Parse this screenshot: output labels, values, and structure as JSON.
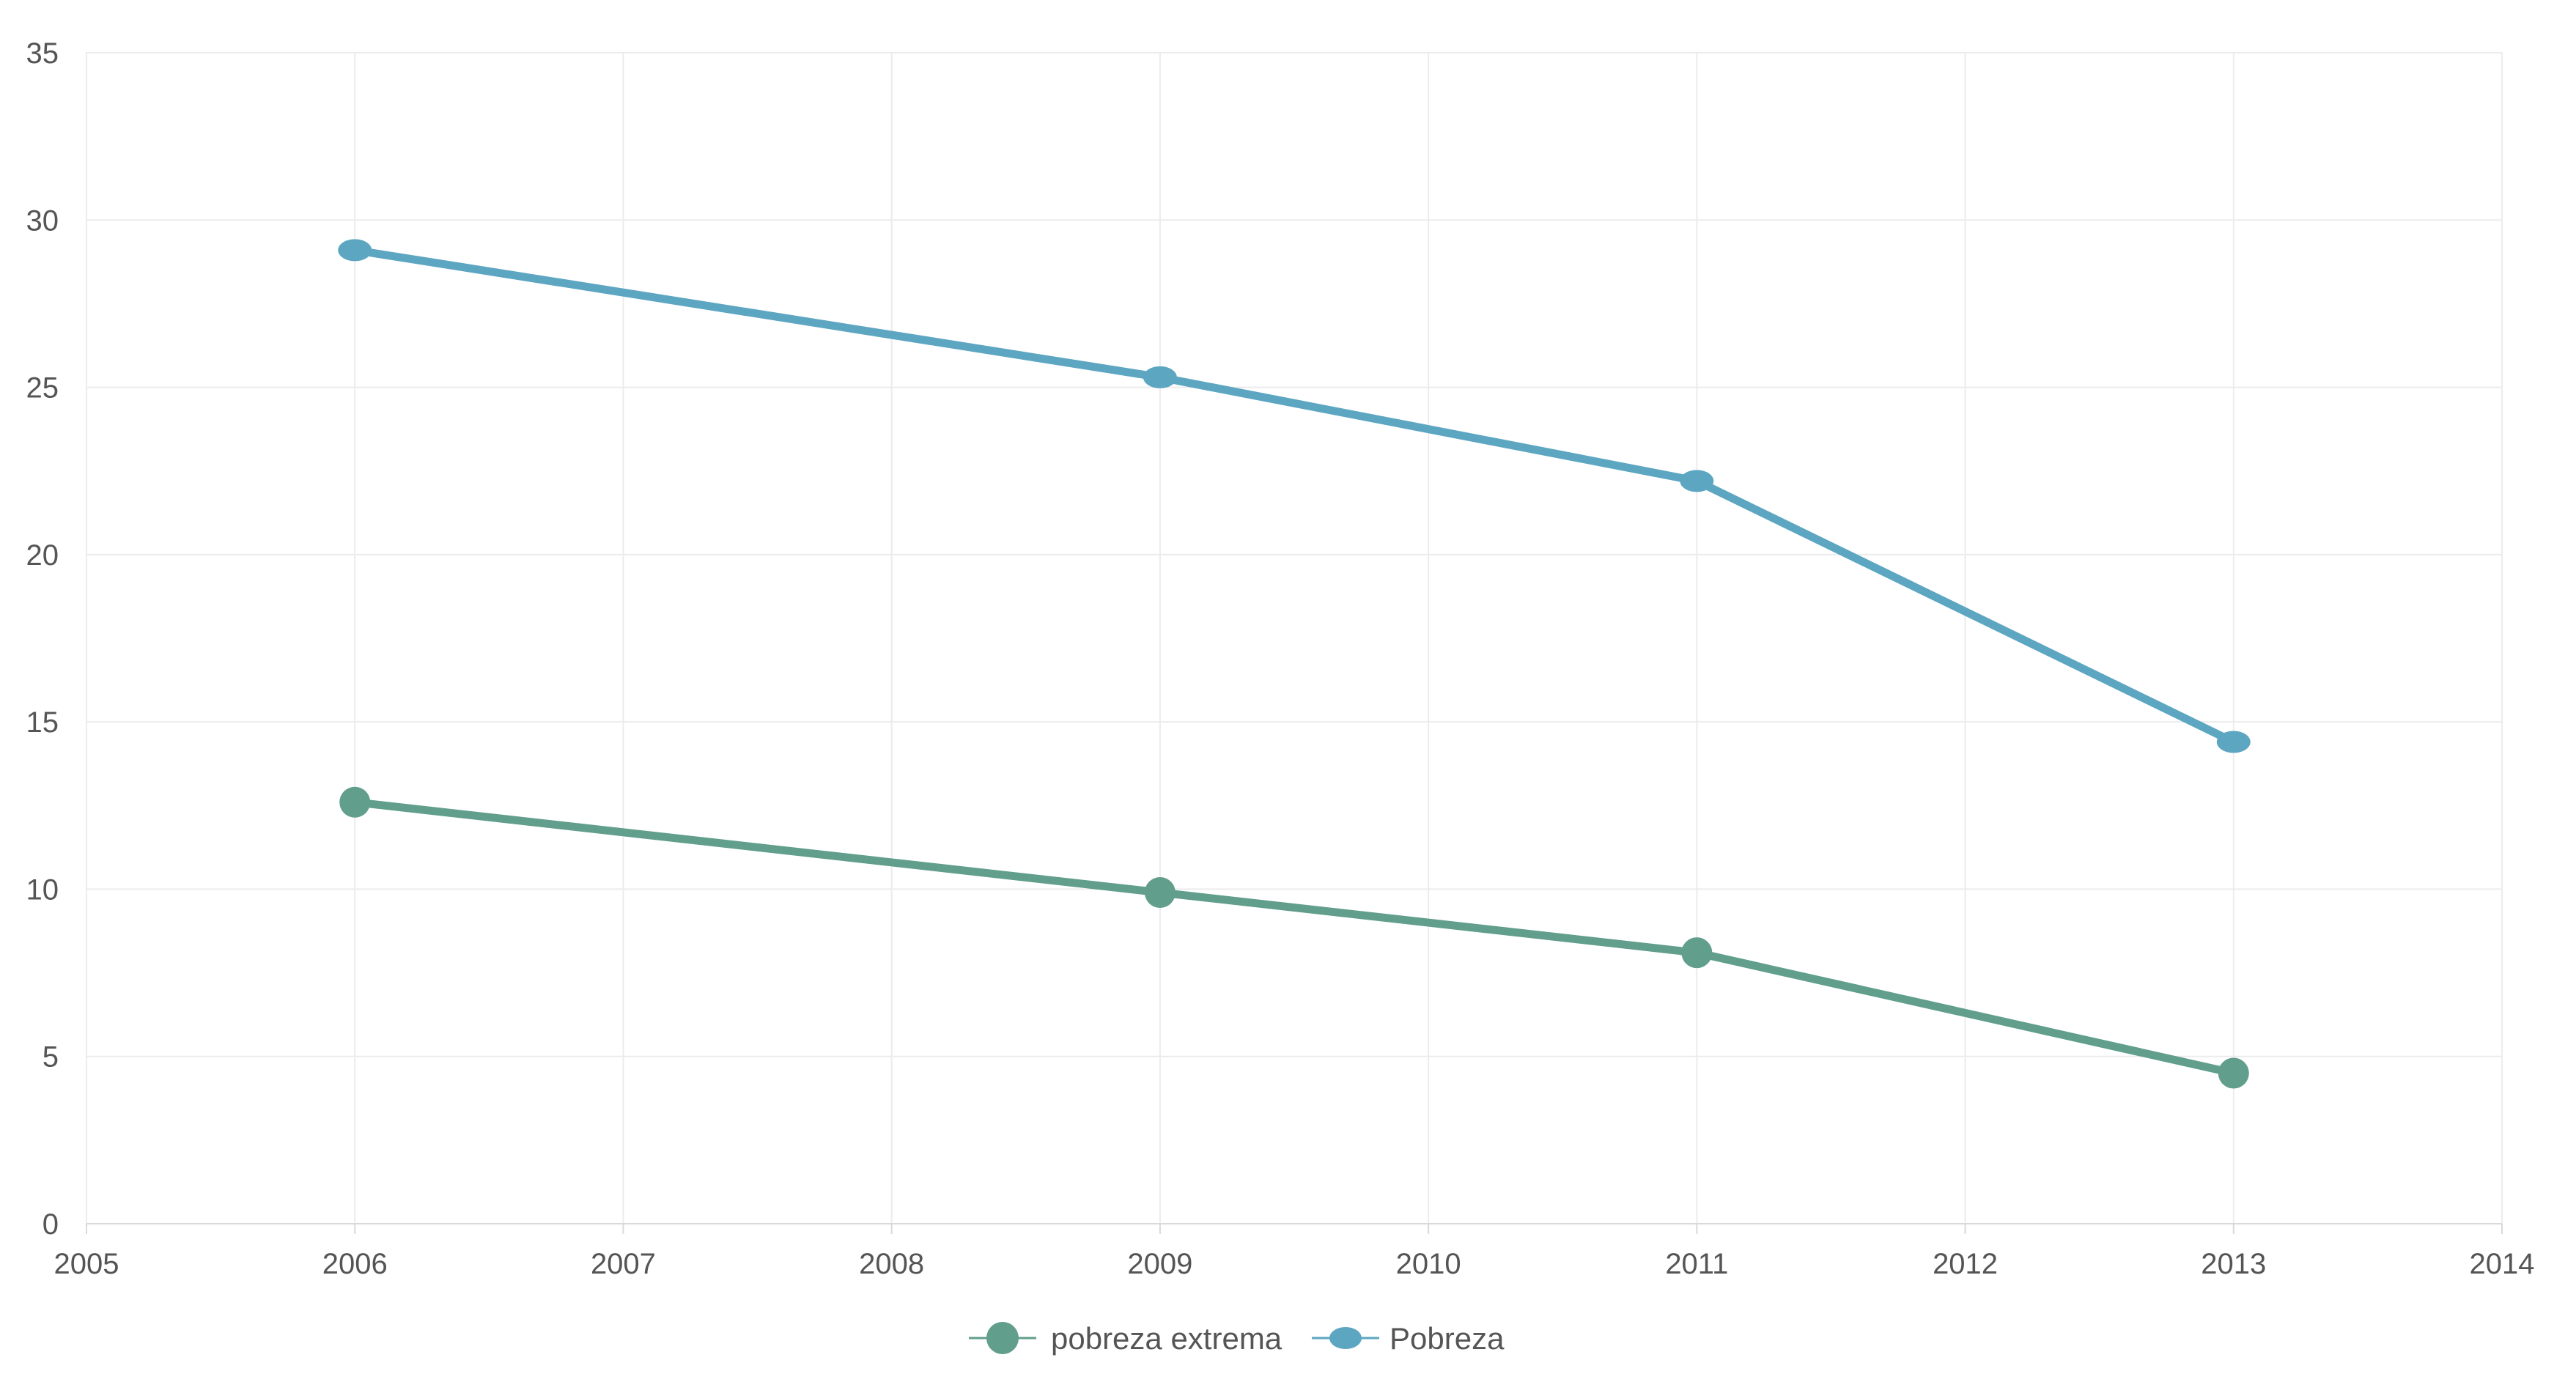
{
  "chart_data": {
    "type": "line",
    "title": "",
    "xlabel": "",
    "ylabel": "",
    "xlim": [
      2005,
      2014
    ],
    "ylim": [
      0,
      35
    ],
    "x_ticks": [
      "2005",
      "2006",
      "2007",
      "2008",
      "2009",
      "2010",
      "2011",
      "2012",
      "2013",
      "2014"
    ],
    "y_ticks": [
      "0",
      "5",
      "10",
      "15",
      "20",
      "25",
      "30",
      "35"
    ],
    "grid": true,
    "legend_position": "bottom-center",
    "series": [
      {
        "name": "pobreza extrema",
        "color": "#619E8C",
        "x": [
          2006,
          2009,
          2011,
          2013
        ],
        "y": [
          12.6,
          9.9,
          8.1,
          4.5
        ]
      },
      {
        "name": "Pobreza",
        "color": "#5DA6C2",
        "x": [
          2006,
          2009,
          2011,
          2013
        ],
        "y": [
          29.1,
          25.3,
          22.2,
          14.4
        ]
      }
    ]
  }
}
